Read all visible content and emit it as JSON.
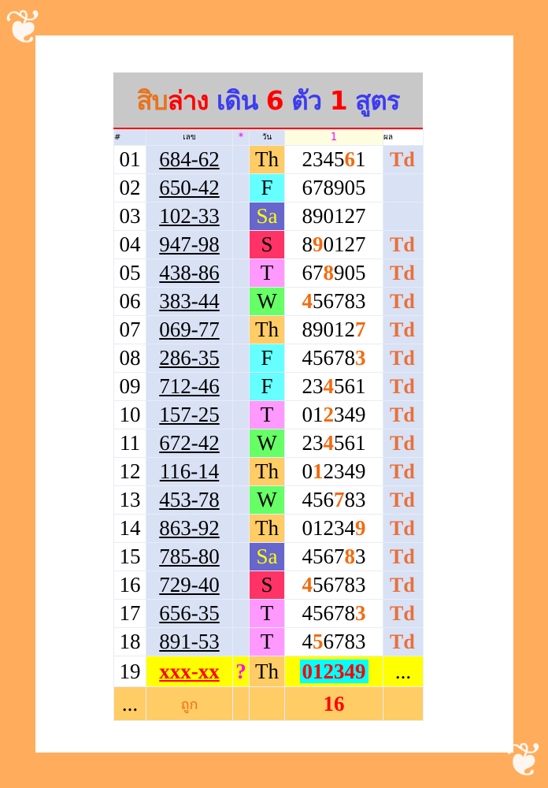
{
  "title": {
    "part1": "สิบ",
    "part2": "ล่าง",
    "part3": "เดิน",
    "part4": "6",
    "part5": "ตัว",
    "part6": "1",
    "part7": "สูตร"
  },
  "header": {
    "no": "#",
    "number": "เลข",
    "star": "*",
    "day": "วัน",
    "formula": "1",
    "result": "ผล"
  },
  "colors": {
    "Th": "#FFCC66",
    "F": "#66FFFF",
    "Sa": "#6666CC",
    "S": "#FF3366",
    "T": "#FF99FF",
    "W": "#66FF66"
  },
  "rows": [
    {
      "no": "01",
      "number": "684-62",
      "day": "Th",
      "digits": "234561",
      "hl": 4,
      "result": "Td"
    },
    {
      "no": "02",
      "number": "650-42",
      "day": "F",
      "digits": "678905",
      "hl": -1,
      "result": ""
    },
    {
      "no": "03",
      "number": "102-33",
      "day": "Sa",
      "digits": "890127",
      "hl": -1,
      "result": ""
    },
    {
      "no": "04",
      "number": "947-98",
      "day": "S",
      "digits": "890127",
      "hl": 1,
      "result": "Td"
    },
    {
      "no": "05",
      "number": "438-86",
      "day": "T",
      "digits": "678905",
      "hl": 2,
      "result": "Td"
    },
    {
      "no": "06",
      "number": "383-44",
      "day": "W",
      "digits": "456783",
      "hl": 0,
      "result": "Td"
    },
    {
      "no": "07",
      "number": "069-77",
      "day": "Th",
      "digits": "890127",
      "hl": 5,
      "result": "Td"
    },
    {
      "no": "08",
      "number": "286-35",
      "day": "F",
      "digits": "456783",
      "hl": 5,
      "result": "Td"
    },
    {
      "no": "09",
      "number": "712-46",
      "day": "F",
      "digits": "234561",
      "hl": 2,
      "result": "Td"
    },
    {
      "no": "10",
      "number": "157-25",
      "day": "T",
      "digits": "012349",
      "hl": 2,
      "result": "Td"
    },
    {
      "no": "11",
      "number": "672-42",
      "day": "W",
      "digits": "234561",
      "hl": 2,
      "result": "Td"
    },
    {
      "no": "12",
      "number": "116-14",
      "day": "Th",
      "digits": "012349",
      "hl": 1,
      "result": "Td"
    },
    {
      "no": "13",
      "number": "453-78",
      "day": "W",
      "digits": "456783",
      "hl": 3,
      "result": "Td"
    },
    {
      "no": "14",
      "number": "863-92",
      "day": "Th",
      "digits": "012349",
      "hl": 5,
      "result": "Td"
    },
    {
      "no": "15",
      "number": "785-80",
      "day": "Sa",
      "digits": "456783",
      "hl": 4,
      "result": "Td"
    },
    {
      "no": "16",
      "number": "729-40",
      "day": "S",
      "digits": "456783",
      "hl": 0,
      "result": "Td"
    },
    {
      "no": "17",
      "number": "656-35",
      "day": "T",
      "digits": "456783",
      "hl": 5,
      "result": "Td"
    },
    {
      "no": "18",
      "number": "891-53",
      "day": "T",
      "digits": "456783",
      "hl": 1,
      "result": "Td"
    }
  ],
  "next": {
    "no": "19",
    "number": "xxx-xx",
    "star": "?",
    "day": "Th",
    "digits": "012349",
    "result": "..."
  },
  "footer": {
    "no": "...",
    "label": "ถูก",
    "count": "16"
  }
}
